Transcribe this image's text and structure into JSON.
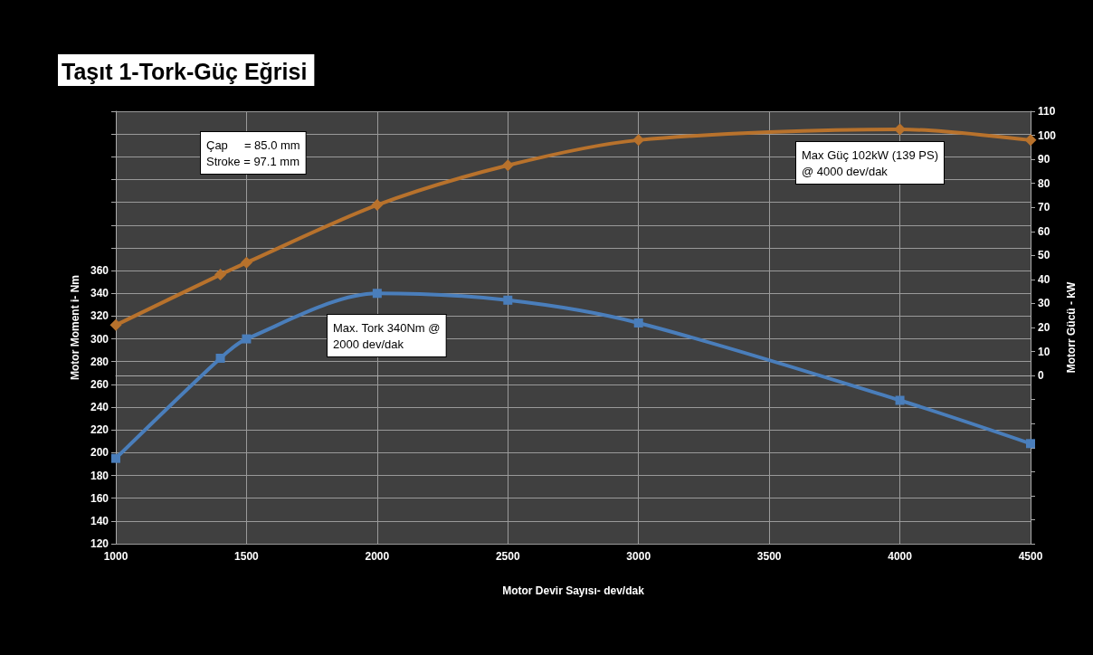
{
  "chart_data": {
    "type": "line",
    "title": "Taşıt 1-Tork-Güç Eğrisi",
    "xlabel": "Motor Devir Sayısı- dev/dak",
    "ylabel": "Motor Moment i- Nm",
    "y2label": "Motorr Gücü - kW",
    "x": [
      1000,
      1400,
      1500,
      2000,
      2500,
      3000,
      4000,
      4500
    ],
    "series": [
      {
        "color": "#4a7ebb",
        "marker": "square",
        "values": [
          195,
          283,
          300,
          340,
          334,
          314,
          246,
          208
        ]
      },
      {
        "color": "#b8722c",
        "marker": "diamond",
        "axis": "y2",
        "values": [
          21,
          42,
          47,
          71,
          87.5,
          98,
          102.5,
          98
        ]
      }
    ],
    "xlim": [
      1000,
      4500
    ],
    "xticks": [
      1000,
      1500,
      2000,
      2500,
      3000,
      3500,
      4000,
      4500
    ],
    "ylim": [
      120,
      500
    ],
    "yticks": [
      120,
      140,
      160,
      180,
      200,
      220,
      240,
      260,
      280,
      300,
      320,
      340,
      360,
      {
        "value": 380,
        "label": null
      },
      {
        "value": 400,
        "label": null
      },
      {
        "value": 420,
        "label": null
      },
      {
        "value": 440,
        "label": null
      },
      {
        "value": 460,
        "label": null
      },
      {
        "value": 480,
        "label": null
      },
      {
        "value": 500,
        "label": null
      }
    ],
    "y2lim": [
      -70,
      110
    ],
    "y2ticks": [
      {
        "value": -70,
        "label": null
      },
      {
        "value": -60,
        "label": null
      },
      {
        "value": -50,
        "label": null
      },
      {
        "value": -40,
        "label": null
      },
      {
        "value": -30,
        "label": null
      },
      {
        "value": -20,
        "label": null
      },
      {
        "value": -10,
        "label": null
      },
      0,
      10,
      20,
      30,
      40,
      50,
      60,
      70,
      80,
      90,
      100,
      110
    ],
    "grid": true,
    "line_style": "solid",
    "annotations": [
      "Çap     = 85.0 mm\nStroke = 97.1 mm",
      "Max. Tork 340Nm @\n2000 dev/dak",
      "Max Güç 102kW (139 PS)\n@ 4000 dev/dak"
    ]
  }
}
